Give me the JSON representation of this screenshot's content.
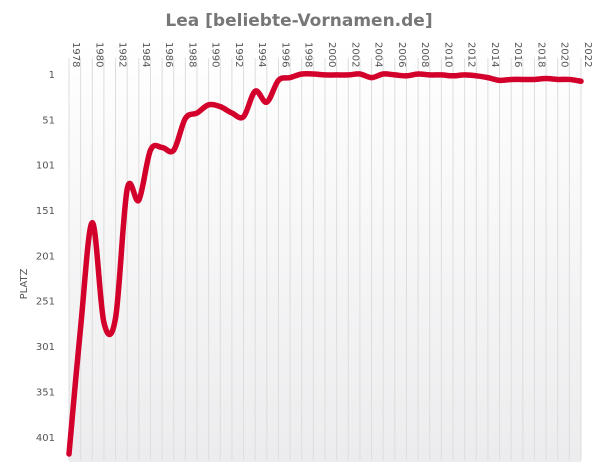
{
  "chart_data": {
    "type": "line",
    "title": "Lea [beliebte-Vornamen.de]",
    "xlabel": "",
    "ylabel": "PLATZ",
    "x_tick_labels": [
      "1978",
      "1980",
      "1982",
      "1984",
      "1986",
      "1988",
      "1990",
      "1992",
      "1994",
      "1996",
      "1998",
      "2000",
      "2002",
      "2004",
      "2006",
      "2008",
      "2010",
      "2012",
      "2014",
      "2016",
      "2018",
      "2020",
      "2022"
    ],
    "y_tick_labels": [
      "1",
      "51",
      "101",
      "151",
      "201",
      "251",
      "301",
      "351",
      "401"
    ],
    "y_ticks": [
      1,
      51,
      101,
      151,
      201,
      251,
      301,
      351,
      401
    ],
    "xlim": [
      1978,
      2022
    ],
    "ylim": [
      1,
      420
    ],
    "y_inverted": true,
    "grid": "vertical",
    "series": [
      {
        "name": "",
        "color": "#d3002b",
        "x": [
          1978,
          1979,
          1980,
          1981,
          1982,
          1983,
          1984,
          1985,
          1986,
          1987,
          1988,
          1989,
          1990,
          1991,
          1992,
          1993,
          1994,
          1995,
          1996,
          1997,
          1998,
          1999,
          2000,
          2001,
          2002,
          2003,
          2004,
          2005,
          2006,
          2007,
          2008,
          2009,
          2010,
          2011,
          2012,
          2013,
          2014,
          2015,
          2016,
          2017,
          2018,
          2019,
          2020,
          2021,
          2022
        ],
        "values": [
          420,
          280,
          165,
          275,
          270,
          128,
          140,
          85,
          82,
          85,
          50,
          44,
          35,
          37,
          44,
          48,
          20,
          32,
          8,
          5,
          1,
          1,
          2,
          2,
          2,
          1,
          5,
          1,
          2,
          3,
          1,
          2,
          2,
          3,
          2,
          3,
          5,
          8,
          7,
          7,
          7,
          6,
          7,
          7,
          9
        ]
      }
    ]
  }
}
